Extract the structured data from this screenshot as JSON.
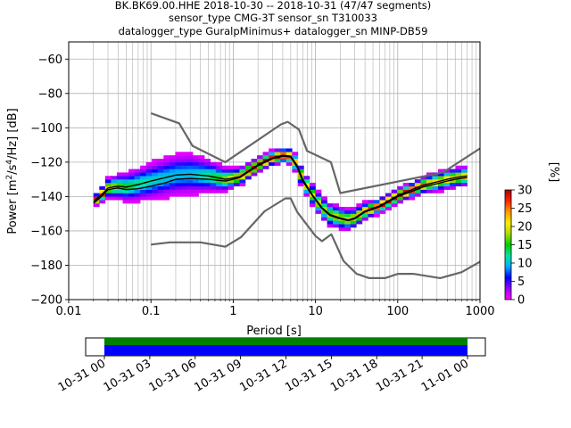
{
  "title": {
    "line1": "BK.BK69.00.HHE   2018-10-30 -- 2018-10-31  (47/47 segments)",
    "line2": "sensor_type CMG-3T sensor_sn T310033",
    "line3": "datalogger_type GuralpMinimus+ datalogger_sn MINP-DB59"
  },
  "chart_data": {
    "type": "heatmap",
    "subtype": "probabilistic power spectral density",
    "xlabel": "Period [s]",
    "ylabel": "Power [m²/s⁴/Hz] [dB]",
    "ylabel_parts": {
      "pre": "Power [m",
      "sup1": "2",
      "mid": "/s",
      "sup2": "4",
      "post": "/Hz] [dB]"
    },
    "x_scale": "log",
    "xlim": [
      0.01,
      1000
    ],
    "ylim": [
      -200,
      -50
    ],
    "x_ticks": [
      0.01,
      0.1,
      1,
      10,
      100,
      1000
    ],
    "x_tick_labels": [
      "0.01",
      "0.1",
      "1",
      "10",
      "100",
      "1000"
    ],
    "y_ticks": [
      -200,
      -180,
      -160,
      -140,
      -120,
      -100,
      -80,
      -60
    ],
    "y_tick_labels": [
      "−200",
      "−180",
      "−160",
      "−140",
      "−120",
      "−100",
      "−80",
      "−60"
    ],
    "grid": true,
    "nhnm": [
      [
        0.1,
        -91.5
      ],
      [
        0.22,
        -97.4
      ],
      [
        0.32,
        -110.5
      ],
      [
        0.8,
        -120
      ],
      [
        3.8,
        -98
      ],
      [
        4.6,
        -96.5
      ],
      [
        6.3,
        -101
      ],
      [
        7.9,
        -113.5
      ],
      [
        15.4,
        -120
      ],
      [
        20,
        -138
      ],
      [
        354.8,
        -126
      ],
      [
        1000,
        -112
      ]
    ],
    "nlnm": [
      [
        0.1,
        -168
      ],
      [
        0.17,
        -166.7
      ],
      [
        0.4,
        -166.7
      ],
      [
        0.8,
        -169.2
      ],
      [
        1.24,
        -163.7
      ],
      [
        2.4,
        -148.6
      ],
      [
        4.3,
        -141.1
      ],
      [
        5,
        -141.1
      ],
      [
        6,
        -149
      ],
      [
        10,
        -163
      ],
      [
        12,
        -166
      ],
      [
        15.6,
        -162
      ],
      [
        21.9,
        -177.5
      ],
      [
        31.6,
        -185
      ],
      [
        45,
        -187.5
      ],
      [
        70,
        -187.5
      ],
      [
        101,
        -185
      ],
      [
        154,
        -185
      ],
      [
        328,
        -187.5
      ],
      [
        600,
        -184
      ],
      [
        1000,
        -178
      ]
    ],
    "mode": [
      [
        0.02,
        -144
      ],
      [
        0.025,
        -140
      ],
      [
        0.03,
        -136
      ],
      [
        0.04,
        -135
      ],
      [
        0.05,
        -136
      ],
      [
        0.07,
        -135.5
      ],
      [
        0.1,
        -134
      ],
      [
        0.15,
        -132
      ],
      [
        0.2,
        -130
      ],
      [
        0.3,
        -129.5
      ],
      [
        0.5,
        -130
      ],
      [
        0.8,
        -131
      ],
      [
        1.2,
        -129
      ],
      [
        2,
        -122
      ],
      [
        3,
        -118
      ],
      [
        4,
        -116.5
      ],
      [
        5,
        -117
      ],
      [
        6,
        -123
      ],
      [
        7,
        -131
      ],
      [
        9,
        -139
      ],
      [
        12,
        -147
      ],
      [
        15,
        -151
      ],
      [
        20,
        -153
      ],
      [
        25,
        -154
      ],
      [
        30,
        -153
      ],
      [
        40,
        -149
      ],
      [
        60,
        -146
      ],
      [
        100,
        -140
      ],
      [
        150,
        -137
      ],
      [
        200,
        -134.5
      ],
      [
        300,
        -132.5
      ],
      [
        400,
        -131
      ],
      [
        500,
        -130
      ],
      [
        700,
        -129
      ]
    ],
    "mean": [
      [
        0.02,
        -143
      ],
      [
        0.025,
        -139
      ],
      [
        0.03,
        -135
      ],
      [
        0.04,
        -134
      ],
      [
        0.05,
        -134.5
      ],
      [
        0.07,
        -133
      ],
      [
        0.1,
        -131
      ],
      [
        0.15,
        -129
      ],
      [
        0.2,
        -127.5
      ],
      [
        0.3,
        -127
      ],
      [
        0.5,
        -128
      ],
      [
        0.8,
        -130
      ],
      [
        1.2,
        -128.5
      ],
      [
        2,
        -121.5
      ],
      [
        3,
        -117.5
      ],
      [
        4,
        -116
      ],
      [
        5,
        -116.5
      ],
      [
        6,
        -122
      ],
      [
        7,
        -130
      ],
      [
        9,
        -138.5
      ],
      [
        12,
        -146.5
      ],
      [
        15,
        -150.5
      ],
      [
        20,
        -152.5
      ],
      [
        25,
        -153.5
      ],
      [
        30,
        -152.5
      ],
      [
        40,
        -148.5
      ],
      [
        60,
        -145.5
      ],
      [
        100,
        -139.5
      ],
      [
        150,
        -136
      ],
      [
        200,
        -133.5
      ],
      [
        300,
        -131.5
      ],
      [
        400,
        -130
      ],
      [
        500,
        -129
      ],
      [
        700,
        -128
      ]
    ],
    "spread_db": [
      [
        0.02,
        2
      ],
      [
        0.03,
        4
      ],
      [
        0.05,
        6
      ],
      [
        0.1,
        8
      ],
      [
        0.2,
        9
      ],
      [
        0.3,
        9
      ],
      [
        0.5,
        7
      ],
      [
        1,
        4
      ],
      [
        2,
        3
      ],
      [
        4,
        3
      ],
      [
        7,
        4
      ],
      [
        15,
        5
      ],
      [
        30,
        4
      ],
      [
        60,
        3
      ],
      [
        150,
        3
      ],
      [
        300,
        4
      ],
      [
        700,
        4
      ]
    ],
    "colorbar": {
      "label": "[%]",
      "range": [
        0,
        30
      ],
      "ticks": [
        0,
        5,
        10,
        15,
        20,
        25,
        30
      ],
      "tick_labels": [
        "0",
        "5",
        "10",
        "15",
        "20",
        "25",
        "30"
      ],
      "colors": [
        "#ff00ff",
        "#9900ff",
        "#0000ff",
        "#00aaff",
        "#00e6a0",
        "#00cc00",
        "#aadd00",
        "#ffee00",
        "#ff9900",
        "#ff2200",
        "#aa0000"
      ]
    },
    "coverage": {
      "tick_labels": [
        "10-31 00",
        "10-31 03",
        "10-31 06",
        "10-31 09",
        "10-31 12",
        "10-31 15",
        "10-31 18",
        "10-31 21",
        "11-01 00"
      ],
      "bar_colors": {
        "data": "#0000ff",
        "used": "#008000"
      }
    },
    "colors": {
      "nm_model": "#666666",
      "mode": "#000000",
      "mean": "#000000"
    }
  }
}
